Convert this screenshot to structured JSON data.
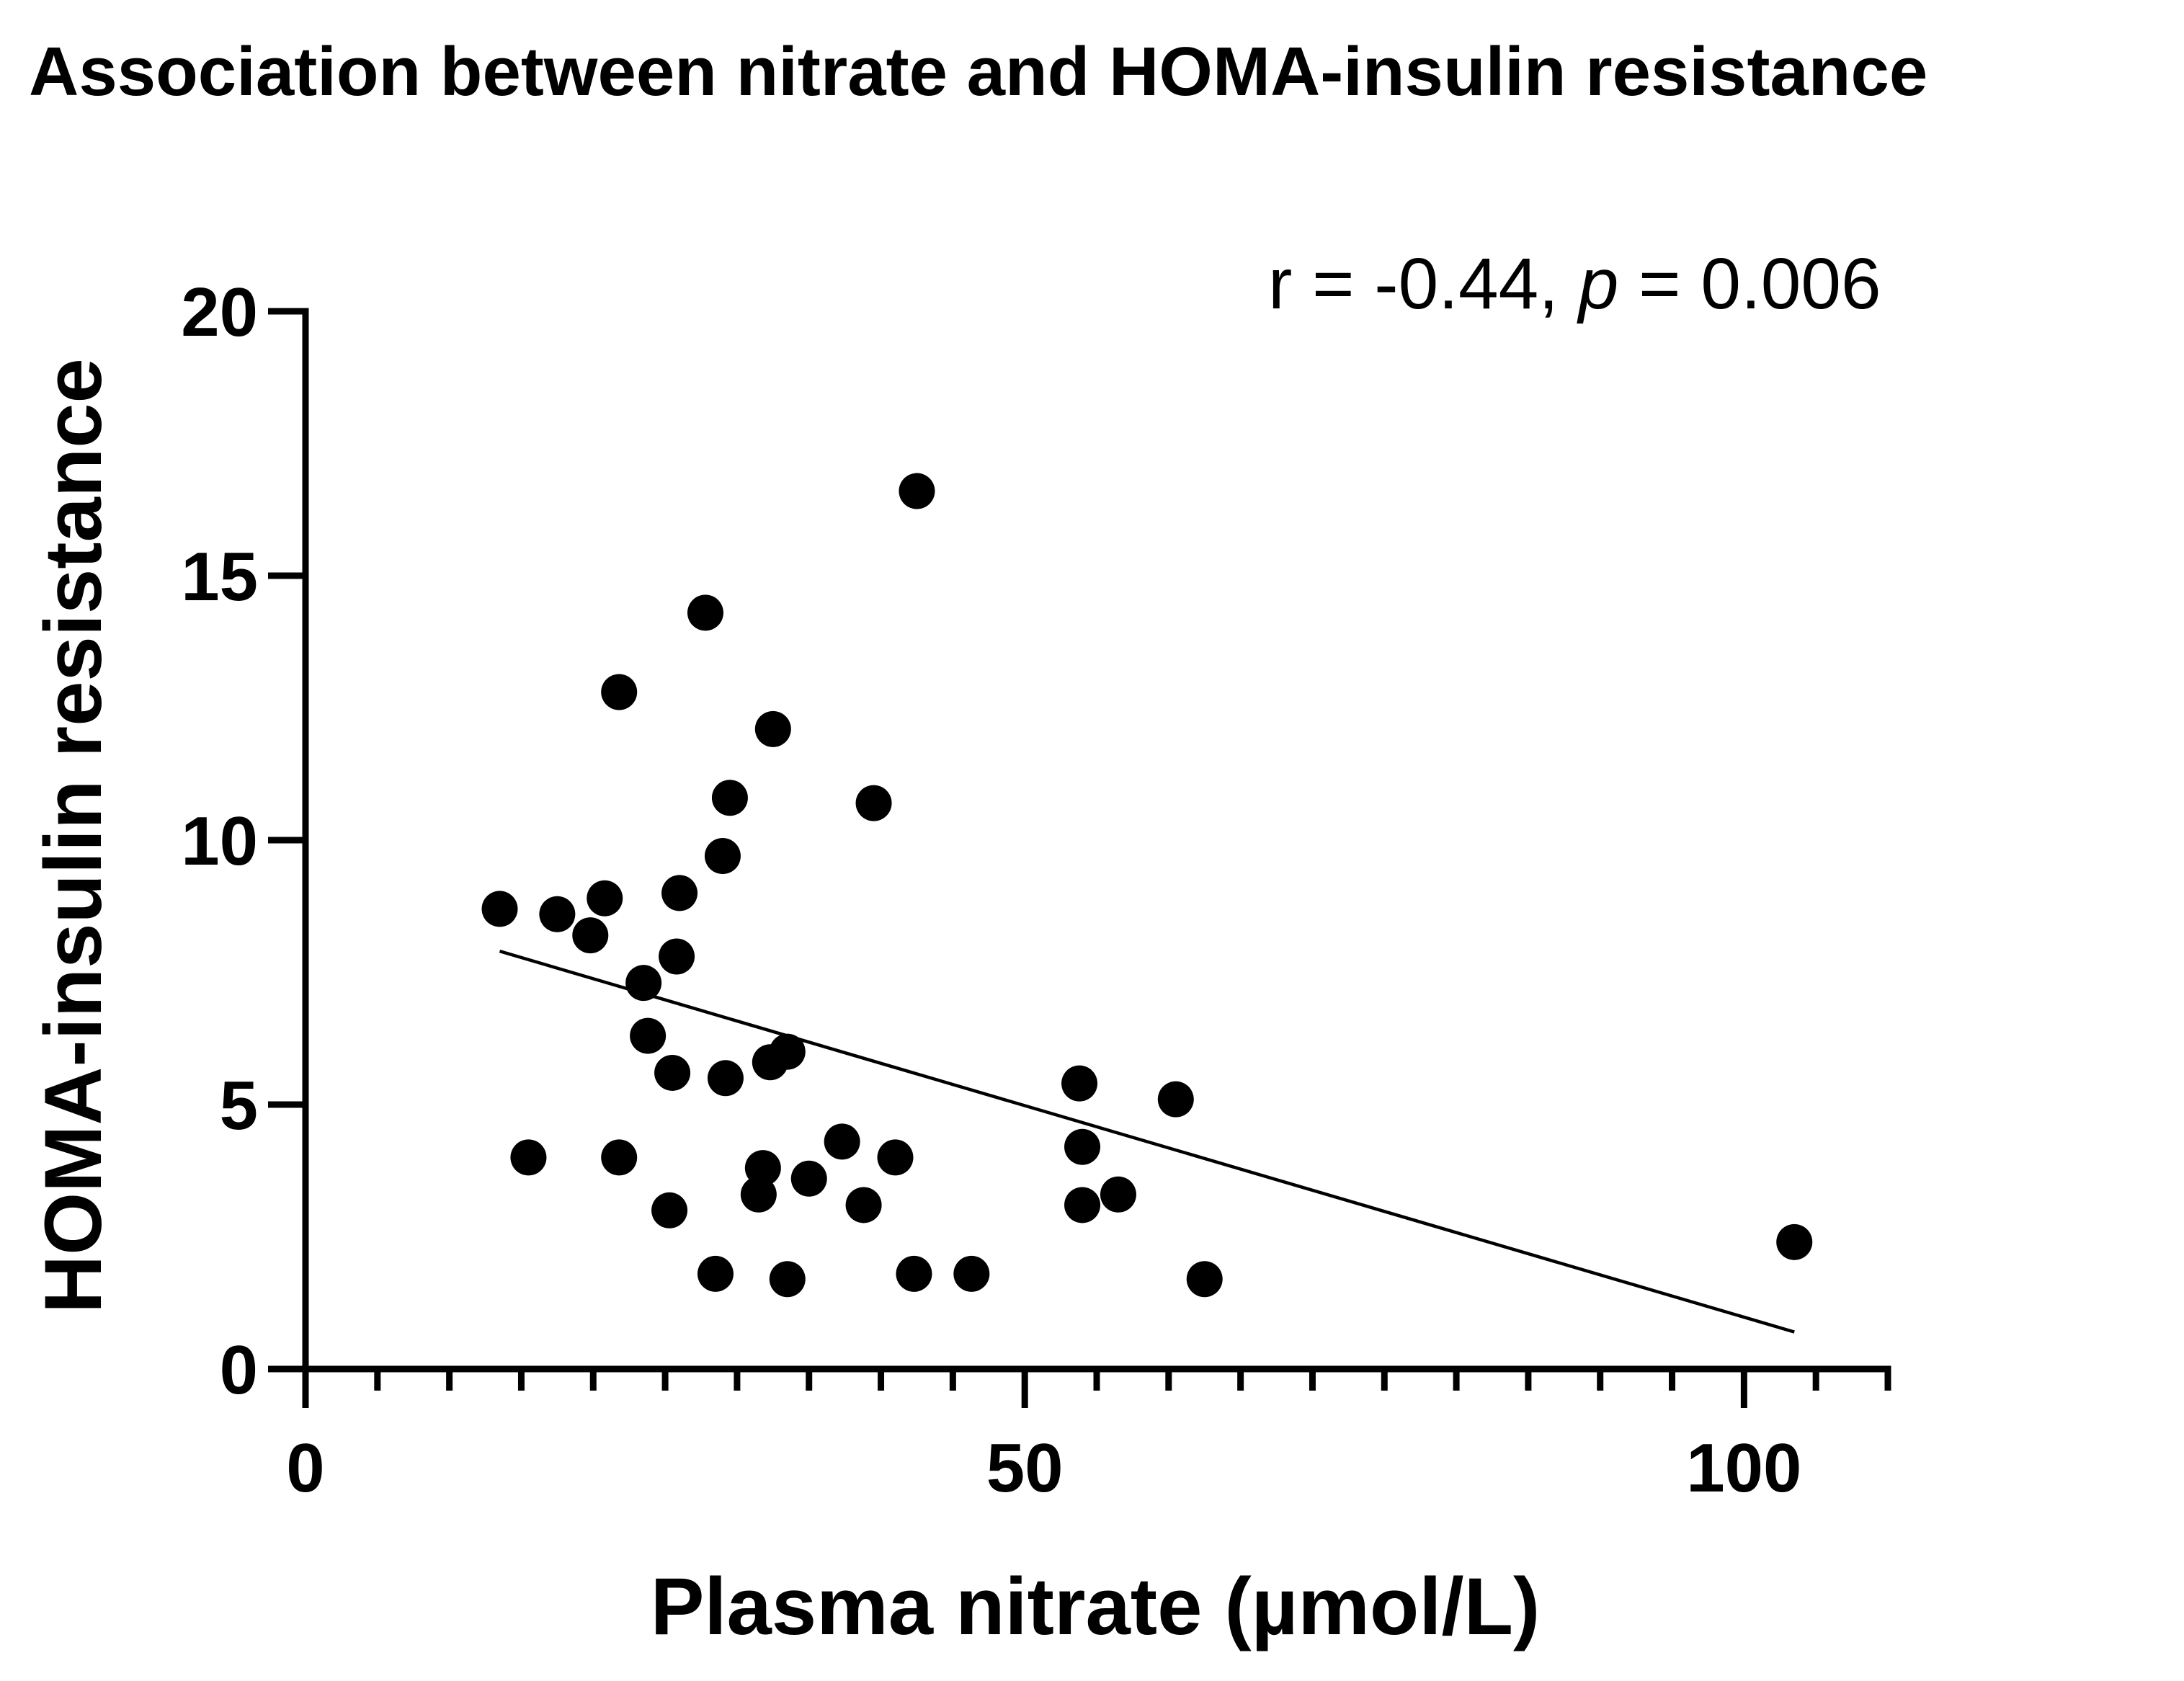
{
  "chart_data": {
    "type": "scatter",
    "title": "Association between nitrate and HOMA-insulin resistance",
    "xlabel": "Plasma nitrate (µmol/L)",
    "ylabel": "HOMA-insulin resistance",
    "xlim": [
      0,
      110
    ],
    "ylim": [
      0,
      20
    ],
    "x_ticks": [
      0,
      50,
      100
    ],
    "y_ticks": [
      0,
      5,
      10,
      15,
      20
    ],
    "x_minor_step": 5,
    "grid": false,
    "annotation": {
      "prefix": "r = -0.44, ",
      "p_symbol": "p",
      "suffix": " = 0.006"
    },
    "fit_line": {
      "x": [
        13.5,
        103.5
      ],
      "y": [
        7.9,
        0.7
      ]
    },
    "points": [
      {
        "x": 13.5,
        "y": 8.7
      },
      {
        "x": 17.5,
        "y": 8.6
      },
      {
        "x": 19.8,
        "y": 8.2
      },
      {
        "x": 20.8,
        "y": 8.9
      },
      {
        "x": 26.0,
        "y": 9.0
      },
      {
        "x": 23.5,
        "y": 7.3
      },
      {
        "x": 25.8,
        "y": 7.8
      },
      {
        "x": 21.8,
        "y": 12.8
      },
      {
        "x": 27.8,
        "y": 14.3
      },
      {
        "x": 42.5,
        "y": 16.6
      },
      {
        "x": 32.5,
        "y": 12.1
      },
      {
        "x": 29.5,
        "y": 10.8
      },
      {
        "x": 29.0,
        "y": 9.7
      },
      {
        "x": 39.5,
        "y": 10.7
      },
      {
        "x": 23.8,
        "y": 6.3
      },
      {
        "x": 25.5,
        "y": 5.6
      },
      {
        "x": 29.2,
        "y": 5.5
      },
      {
        "x": 32.3,
        "y": 5.8
      },
      {
        "x": 33.5,
        "y": 6.0
      },
      {
        "x": 15.5,
        "y": 4.0
      },
      {
        "x": 21.8,
        "y": 4.0
      },
      {
        "x": 25.3,
        "y": 3.0
      },
      {
        "x": 28.5,
        "y": 1.8
      },
      {
        "x": 31.8,
        "y": 3.8
      },
      {
        "x": 31.5,
        "y": 3.3
      },
      {
        "x": 33.5,
        "y": 1.7
      },
      {
        "x": 35.0,
        "y": 3.6
      },
      {
        "x": 37.3,
        "y": 4.3
      },
      {
        "x": 38.8,
        "y": 3.1
      },
      {
        "x": 41.0,
        "y": 4.0
      },
      {
        "x": 42.3,
        "y": 1.8
      },
      {
        "x": 46.3,
        "y": 1.8
      },
      {
        "x": 53.8,
        "y": 5.4
      },
      {
        "x": 54.0,
        "y": 4.2
      },
      {
        "x": 54.0,
        "y": 3.1
      },
      {
        "x": 56.5,
        "y": 3.3
      },
      {
        "x": 60.5,
        "y": 5.1
      },
      {
        "x": 62.5,
        "y": 1.7
      },
      {
        "x": 103.5,
        "y": 2.4
      }
    ]
  }
}
